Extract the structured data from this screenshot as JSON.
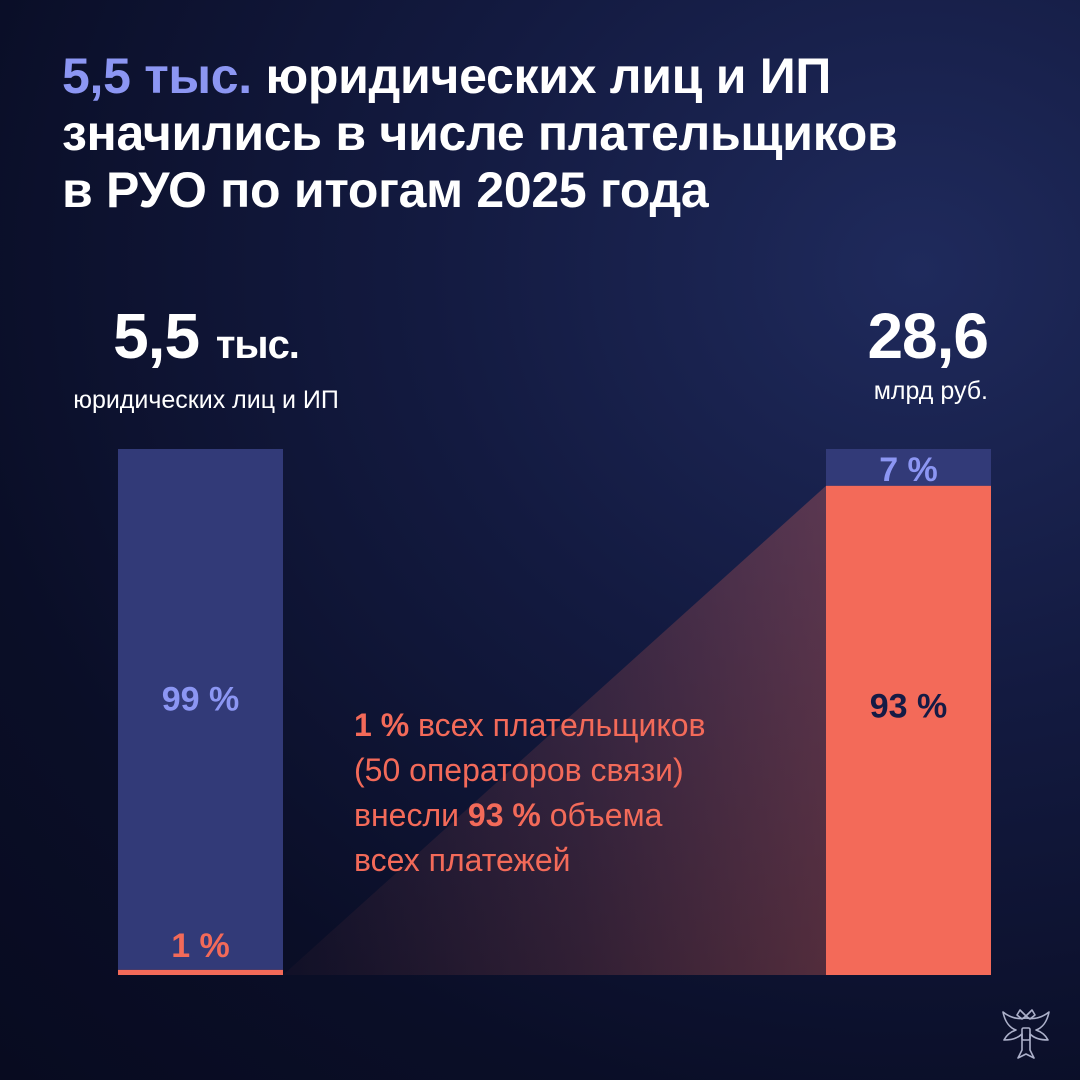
{
  "headline": {
    "accent": "5,5 тыс.",
    "rest_line1": " юридических лиц и ИП",
    "line2": "значились в числе плательщиков",
    "line3": "в РУО по итогам 2025 года"
  },
  "left_stat": {
    "value": "5,5",
    "unit": "тыс.",
    "label": "юридических лиц и ИП"
  },
  "right_stat": {
    "value": "28,6",
    "label": "млрд руб."
  },
  "note": {
    "p1_bold": "1 %",
    "p1_text": " всех плательщиков",
    "line2": "(50 операторов связи)",
    "p3_text": "внесли ",
    "p3_bold": "93 %",
    "p3_after": " объема",
    "line4": "всех платежей"
  },
  "colors": {
    "navy_bar": "#323a78",
    "coral": "#f36a59",
    "lavender": "#8c96f3",
    "dark_text": "#151b45"
  },
  "chart_data": [
    {
      "type": "bar",
      "stacked": true,
      "categories": [
        "5,5 тыс. юридических лиц и ИП"
      ],
      "series": [
        {
          "value": 1,
          "label": "1 %"
        },
        {
          "value": 99,
          "label": "99 %"
        }
      ],
      "ylim": [
        0,
        100
      ]
    },
    {
      "type": "bar",
      "stacked": true,
      "categories": [
        "28,6 млрд руб."
      ],
      "series": [
        {
          "value": 93,
          "label": "93 %"
        },
        {
          "value": 7,
          "label": "7 %"
        }
      ],
      "ylim": [
        0,
        100
      ]
    }
  ],
  "emblem": "double-headed-eagle-emblem"
}
